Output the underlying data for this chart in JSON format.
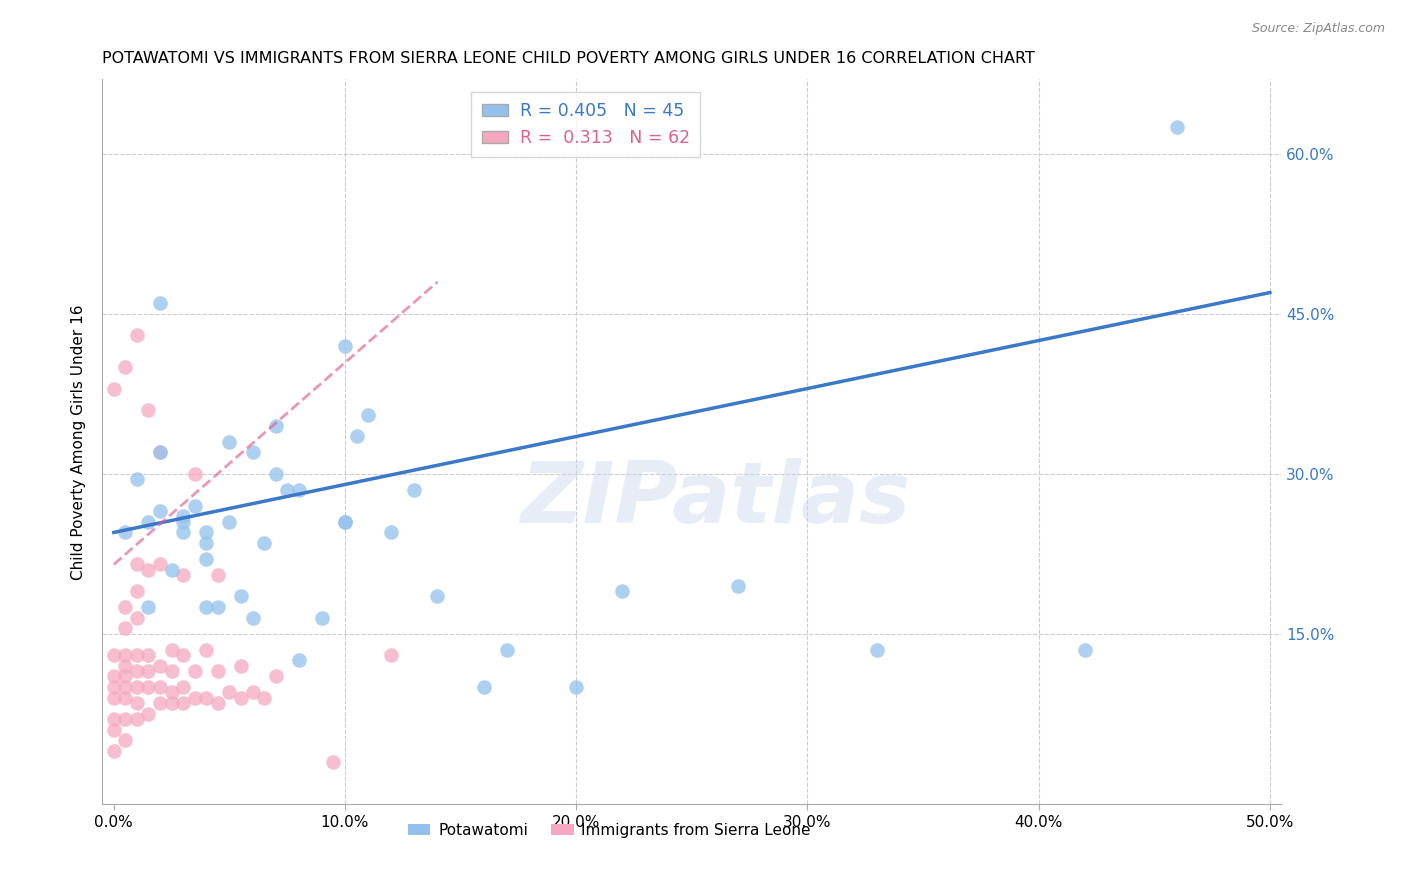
{
  "title": "POTAWATOMI VS IMMIGRANTS FROM SIERRA LEONE CHILD POVERTY AMONG GIRLS UNDER 16 CORRELATION CHART",
  "source": "Source: ZipAtlas.com",
  "xlabel": "",
  "ylabel": "Child Poverty Among Girls Under 16",
  "xlim": [
    -0.005,
    0.505
  ],
  "ylim": [
    -0.01,
    0.67
  ],
  "xticks": [
    0.0,
    0.1,
    0.2,
    0.3,
    0.4,
    0.5
  ],
  "xtick_labels": [
    "0.0%",
    "10.0%",
    "20.0%",
    "30.0%",
    "40.0%",
    "50.0%"
  ],
  "ytick_positions": [
    0.15,
    0.3,
    0.45,
    0.6
  ],
  "ytick_labels_right": [
    "15.0%",
    "30.0%",
    "45.0%",
    "60.0%"
  ],
  "r_blue": 0.405,
  "n_blue": 45,
  "r_pink": 0.313,
  "n_pink": 62,
  "blue_color": "#92C1EC",
  "pink_color": "#F5A8C0",
  "blue_line_color": "#3A78C9",
  "pink_line_color": "#E06090",
  "right_axis_color": "#3A78C9",
  "legend_label_blue": "Potawatomi",
  "legend_label_pink": "Immigrants from Sierra Leone",
  "watermark": "ZIPatlas",
  "blue_line_x0": 0.0,
  "blue_line_y0": 0.245,
  "blue_line_x1": 0.5,
  "blue_line_y1": 0.47,
  "pink_line_x0": 0.0,
  "pink_line_y0": 0.215,
  "pink_line_x1": 0.14,
  "pink_line_y1": 0.48,
  "blue_x": [
    0.005,
    0.01,
    0.015,
    0.015,
    0.02,
    0.02,
    0.02,
    0.025,
    0.03,
    0.03,
    0.03,
    0.035,
    0.04,
    0.04,
    0.04,
    0.04,
    0.045,
    0.05,
    0.05,
    0.055,
    0.06,
    0.06,
    0.065,
    0.07,
    0.07,
    0.075,
    0.08,
    0.08,
    0.09,
    0.1,
    0.1,
    0.1,
    0.105,
    0.11,
    0.12,
    0.13,
    0.14,
    0.16,
    0.17,
    0.2,
    0.22,
    0.27,
    0.33,
    0.42,
    0.46
  ],
  "blue_y": [
    0.245,
    0.295,
    0.175,
    0.255,
    0.265,
    0.32,
    0.46,
    0.21,
    0.255,
    0.26,
    0.245,
    0.27,
    0.22,
    0.235,
    0.175,
    0.245,
    0.175,
    0.255,
    0.33,
    0.185,
    0.165,
    0.32,
    0.235,
    0.3,
    0.345,
    0.285,
    0.125,
    0.285,
    0.165,
    0.255,
    0.255,
    0.42,
    0.335,
    0.355,
    0.245,
    0.285,
    0.185,
    0.1,
    0.135,
    0.1,
    0.19,
    0.195,
    0.135,
    0.135,
    0.625
  ],
  "pink_x": [
    0.0,
    0.0,
    0.0,
    0.0,
    0.0,
    0.0,
    0.0,
    0.0,
    0.005,
    0.005,
    0.005,
    0.005,
    0.005,
    0.005,
    0.005,
    0.005,
    0.005,
    0.005,
    0.01,
    0.01,
    0.01,
    0.01,
    0.01,
    0.01,
    0.01,
    0.01,
    0.01,
    0.015,
    0.015,
    0.015,
    0.015,
    0.015,
    0.015,
    0.02,
    0.02,
    0.02,
    0.02,
    0.02,
    0.025,
    0.025,
    0.025,
    0.025,
    0.03,
    0.03,
    0.03,
    0.03,
    0.035,
    0.035,
    0.035,
    0.04,
    0.04,
    0.045,
    0.045,
    0.045,
    0.05,
    0.055,
    0.055,
    0.06,
    0.065,
    0.07,
    0.095,
    0.12
  ],
  "pink_y": [
    0.04,
    0.06,
    0.07,
    0.09,
    0.1,
    0.11,
    0.13,
    0.38,
    0.05,
    0.07,
    0.09,
    0.1,
    0.11,
    0.12,
    0.13,
    0.155,
    0.175,
    0.4,
    0.07,
    0.085,
    0.1,
    0.115,
    0.13,
    0.165,
    0.19,
    0.215,
    0.43,
    0.075,
    0.1,
    0.115,
    0.13,
    0.21,
    0.36,
    0.085,
    0.1,
    0.12,
    0.215,
    0.32,
    0.085,
    0.095,
    0.115,
    0.135,
    0.085,
    0.1,
    0.13,
    0.205,
    0.09,
    0.115,
    0.3,
    0.09,
    0.135,
    0.085,
    0.115,
    0.205,
    0.095,
    0.09,
    0.12,
    0.095,
    0.09,
    0.11,
    0.03,
    0.13
  ]
}
